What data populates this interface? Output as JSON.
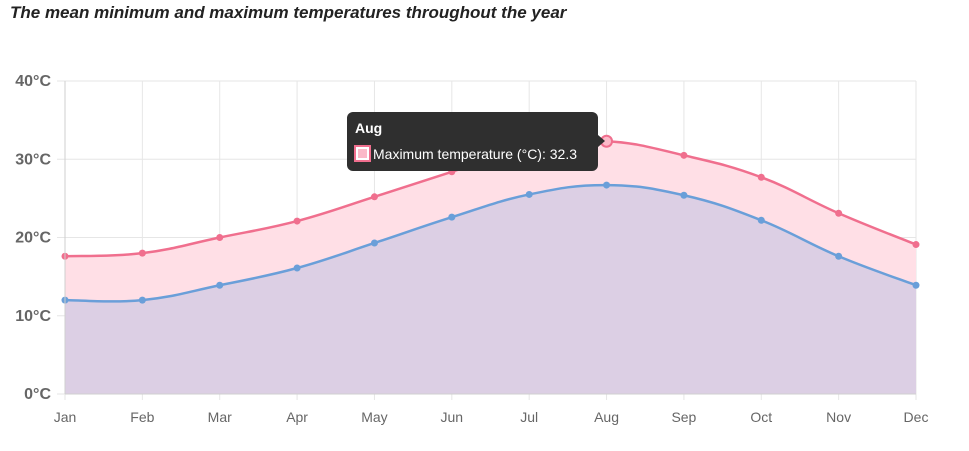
{
  "title": "The mean minimum and maximum temperatures throughout the year",
  "chart_data": {
    "type": "area",
    "title": "The mean minimum and maximum temperatures throughout the year",
    "categories": [
      "Jan",
      "Feb",
      "Mar",
      "Apr",
      "May",
      "Jun",
      "Jul",
      "Aug",
      "Sep",
      "Oct",
      "Nov",
      "Dec"
    ],
    "y_tick_labels": [
      "0°C",
      "10°C",
      "20°C",
      "30°C",
      "40°C"
    ],
    "y_ticks": [
      0,
      10,
      20,
      30,
      40
    ],
    "ylim": [
      0,
      40
    ],
    "grid": true,
    "legend": "none",
    "series": [
      {
        "name": "Maximum temperature (°C)",
        "values": [
          17.6,
          18.0,
          20.0,
          22.1,
          25.2,
          28.4,
          31.5,
          32.3,
          30.5,
          27.7,
          23.1,
          19.1
        ],
        "line_color": "#f06f8e",
        "fill_color": "#ffdfe6"
      },
      {
        "values": [
          12.0,
          12.0,
          13.9,
          16.1,
          19.3,
          22.6,
          25.5,
          26.7,
          25.4,
          22.2,
          17.6,
          13.9
        ],
        "line_color": "#6a9fd9",
        "fill_color": "#dccfe4"
      }
    ],
    "tooltip": {
      "title": "Aug",
      "label": "Maximum temperature (°C): 32.3",
      "bg_color": "#2f2f2f",
      "swatch_color": "#f06f8e"
    }
  }
}
